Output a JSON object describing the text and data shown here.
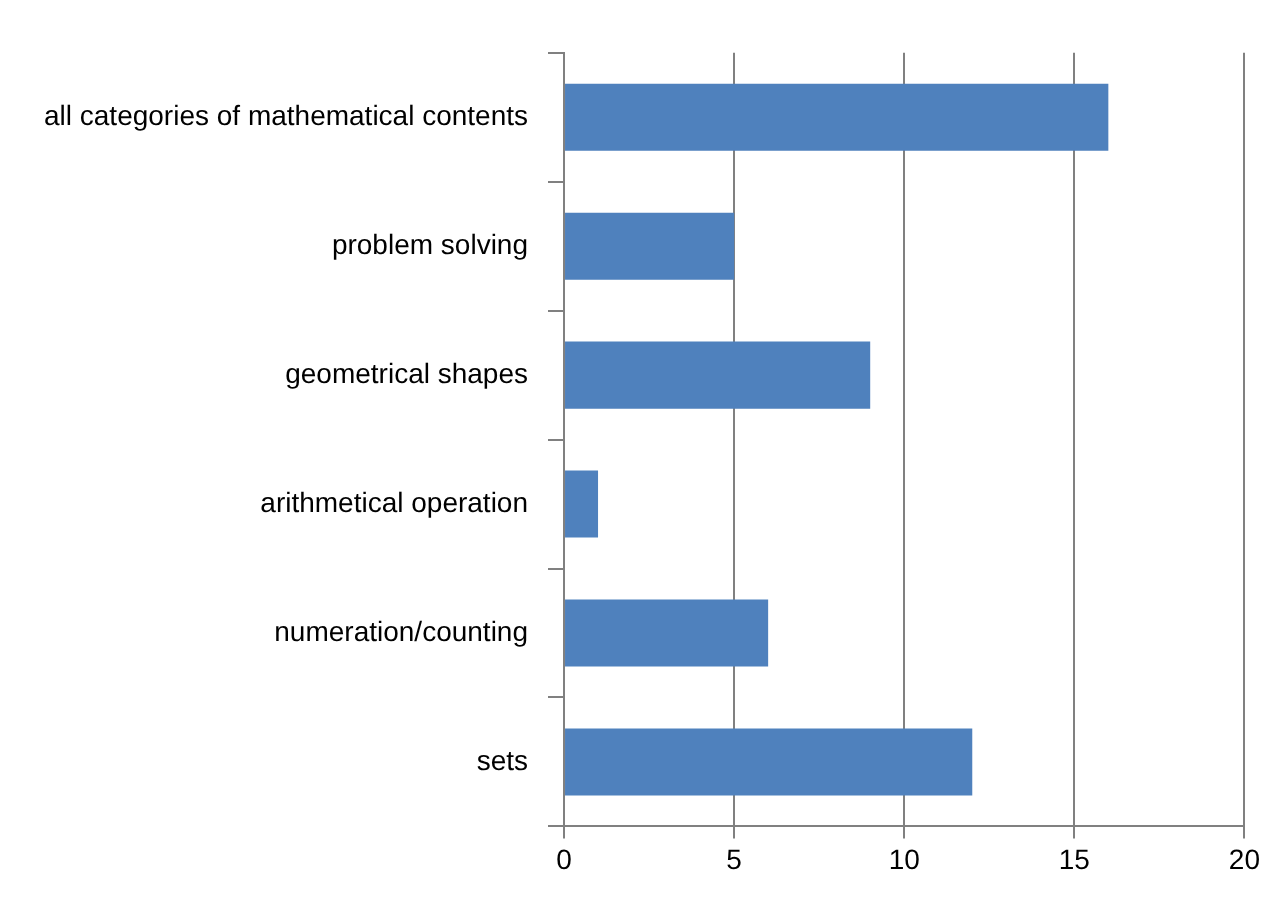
{
  "chart_data": {
    "type": "bar",
    "orientation": "horizontal",
    "categories": [
      "all categories of mathematical contents",
      "problem solving",
      "geometrical shapes",
      "arithmetical operation",
      "numeration/counting",
      "sets"
    ],
    "values": [
      16,
      5,
      9,
      1,
      6,
      12
    ],
    "color": "#4f81bd",
    "xlim": [
      0,
      20
    ],
    "xticks": [
      0,
      5,
      10,
      15,
      20
    ],
    "grid": "x",
    "legend": false
  }
}
